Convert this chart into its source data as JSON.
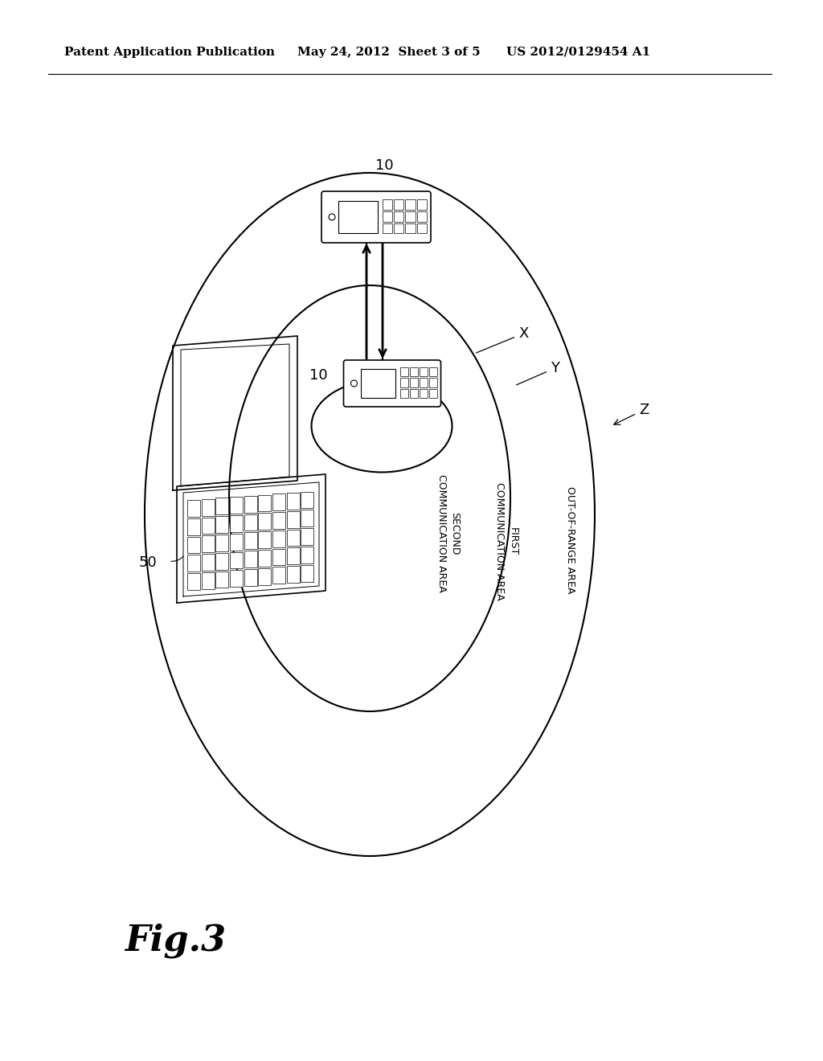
{
  "bg_color": "#ffffff",
  "title_left": "Patent Application Publication",
  "title_mid": "May 24, 2012  Sheet 3 of 5",
  "title_right": "US 2012/0129454 A1",
  "fig_label": "Fig.3",
  "label_10_top": "10",
  "label_10_mid": "10",
  "label_50": "50",
  "label_X": "X",
  "label_Y": "Y",
  "label_Z": "Z",
  "area_second": "SECOND\nCOMMUNICATION AREA",
  "area_first": "FIRST\nCOMMUNICATION AREA",
  "area_out": "OUT-OF-RANGE AREA",
  "text_color": "#000000",
  "line_color": "#000000"
}
